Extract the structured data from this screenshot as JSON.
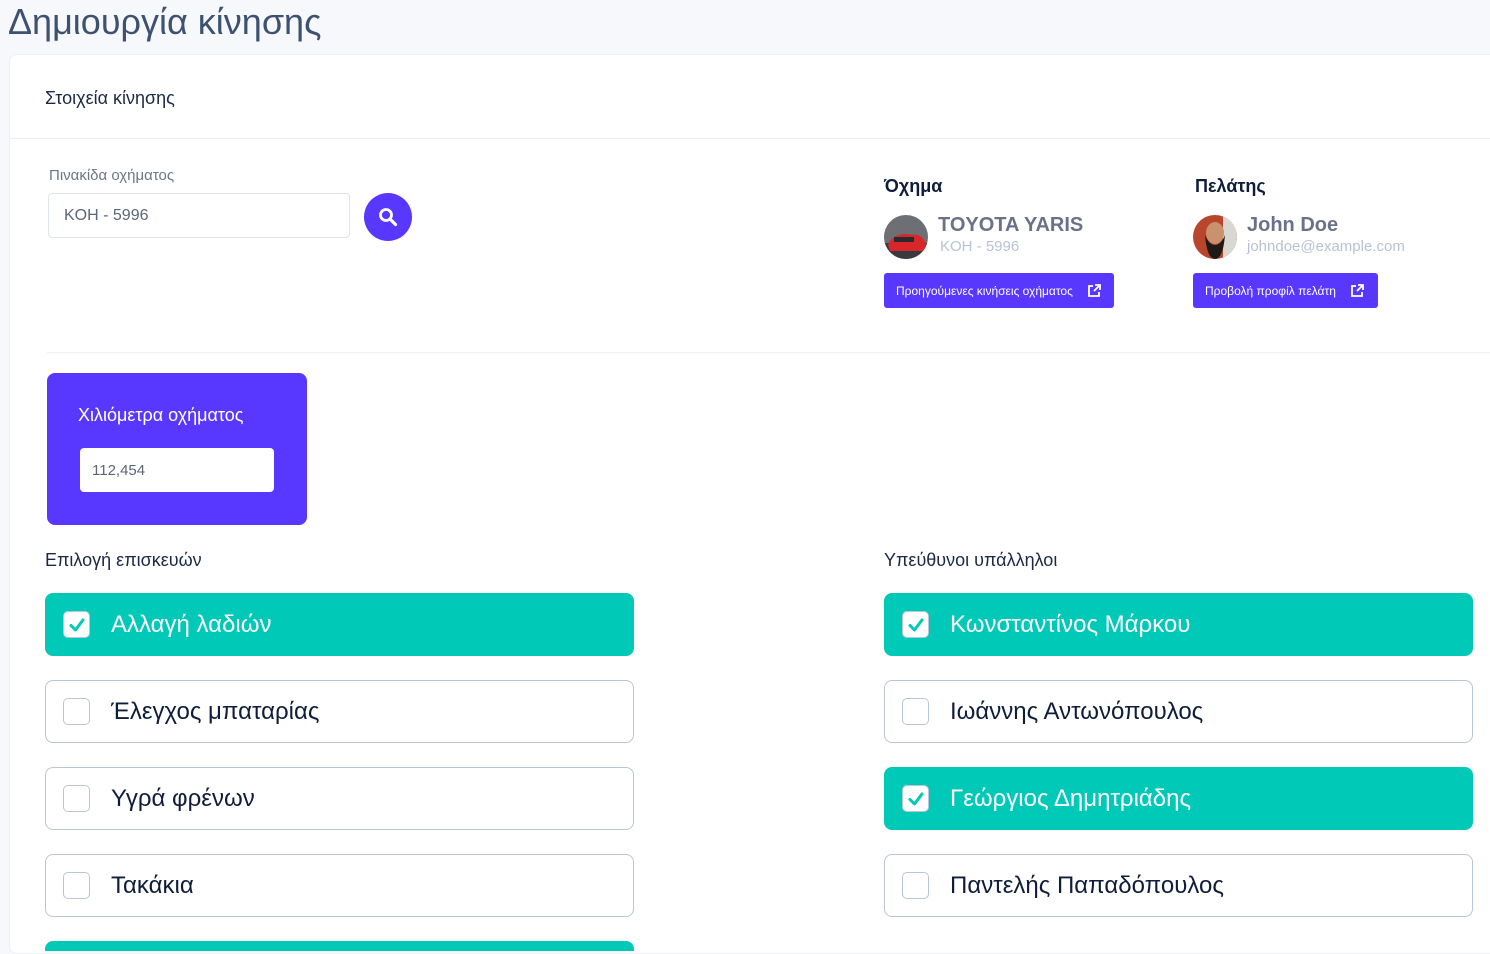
{
  "page": {
    "title": "Δημιουργία κίνησης"
  },
  "card": {
    "title": "Στοιχεία κίνησης"
  },
  "plate": {
    "label": "Πινακίδα οχήματος",
    "value": "KOH - 5996",
    "search_icon": "search-icon"
  },
  "vehicle": {
    "heading": "Όχημα",
    "name": "TOYOTA YARIS",
    "plate": "KOH - 5996",
    "button": "Προηγούμενες κινήσεις οχήματος",
    "button_icon": "external-link-icon"
  },
  "customer": {
    "heading": "Πελάτης",
    "name": "John Doe",
    "email": "johndoe@example.com",
    "button": "Προβολή προφίλ πελάτη",
    "button_icon": "external-link-icon"
  },
  "mileage": {
    "label": "Χιλιόμετρα οχήματος",
    "value": "112,454"
  },
  "repairs": {
    "heading": "Επιλογή επισκευών",
    "items": [
      {
        "label": "Αλλαγή λαδιών",
        "checked": true
      },
      {
        "label": "Έλεγχος μπαταρίας",
        "checked": false
      },
      {
        "label": "Υγρά φρένων",
        "checked": false
      },
      {
        "label": "Τακάκια",
        "checked": false
      }
    ]
  },
  "employees": {
    "heading": "Υπεύθυνοι υπάλληλοι",
    "items": [
      {
        "label": "Κωνσταντίνος Μάρκου",
        "checked": true
      },
      {
        "label": "Ιωάννης Αντωνόπουλος",
        "checked": false
      },
      {
        "label": "Γεώργιος Δημητριάδης",
        "checked": true
      },
      {
        "label": "Παντελής Παπαδόπουλος",
        "checked": false
      }
    ]
  },
  "colors": {
    "primary": "#5838ff",
    "checked": "#00c9b7",
    "title": "#3e5170"
  }
}
